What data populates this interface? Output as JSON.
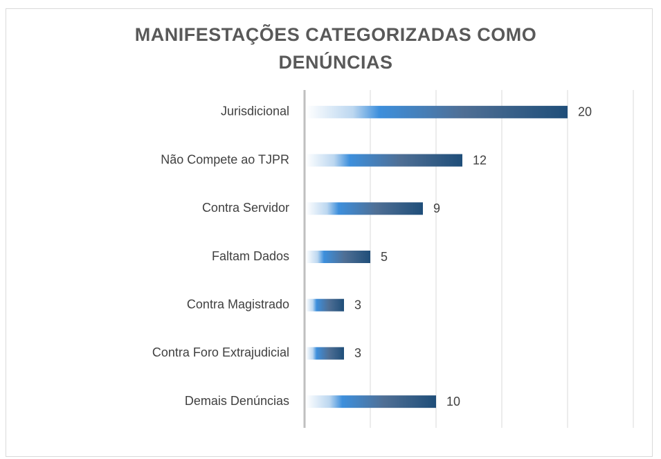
{
  "chart_data": {
    "type": "hbar",
    "title": "MANIFESTAÇÕES CATEGORIZADAS COMO DENÚNCIAS",
    "categories": [
      "Jurisdicional",
      "Não Compete ao TJPR",
      "Contra Servidor",
      "Faltam Dados",
      "Contra Magistrado",
      "Contra Foro Extrajudicial",
      "Demais Denúncias"
    ],
    "values": [
      20,
      12,
      9,
      5,
      3,
      3,
      10
    ],
    "color": "#1f4e79",
    "xlim": [
      0,
      25
    ],
    "xticks": [
      0,
      5,
      10,
      15,
      20,
      25
    ],
    "grid": true
  }
}
